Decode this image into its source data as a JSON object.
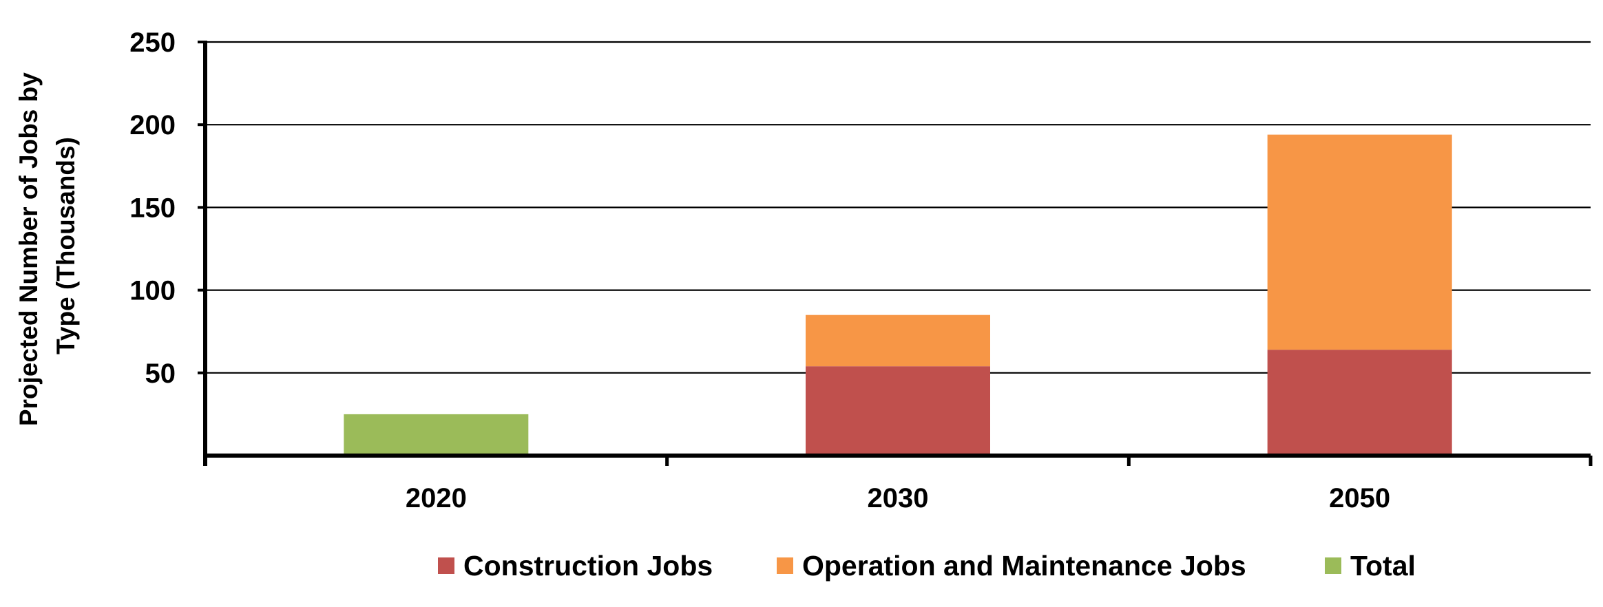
{
  "chart_data": {
    "type": "bar",
    "stacked": true,
    "categories": [
      "2020",
      "2030",
      "2050"
    ],
    "series": [
      {
        "name": "Construction Jobs",
        "color": "#C0504D",
        "values": [
          null,
          54,
          64
        ]
      },
      {
        "name": "Operation and Maintenance Jobs",
        "color": "#F79646",
        "values": [
          null,
          31,
          130
        ]
      },
      {
        "name": "Total",
        "color": "#9BBB59",
        "values": [
          25,
          null,
          null
        ]
      }
    ],
    "ylabel_lines": [
      "Projected Number of Jobs by",
      "Type (Thousands)"
    ],
    "xlabel": "",
    "ylim": [
      0,
      250
    ],
    "yticks": [
      50,
      100,
      150,
      200,
      250
    ],
    "grid": true,
    "legend_position": "bottom"
  }
}
